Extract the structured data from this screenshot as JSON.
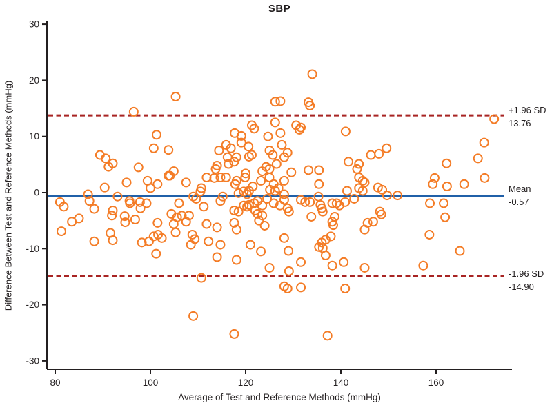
{
  "title": "SBP",
  "axes": {
    "x_label": "Average of Test and Reference Methods (mmHg)",
    "y_label": "Difference Between Test and Reference Methods (mmHg)",
    "x_ticks": [
      80,
      100,
      120,
      140,
      160
    ],
    "y_ticks": [
      -30,
      -20,
      -10,
      0,
      10,
      20,
      30
    ]
  },
  "reference_lines": [
    {
      "name": "upper_loa",
      "label": "+1.96 SD",
      "value_label": "13.76",
      "value": 13.76,
      "style": "dashed",
      "color": "#a82423"
    },
    {
      "name": "mean",
      "label": "Mean",
      "value_label": "-0.57",
      "value": -0.57,
      "style": "solid",
      "color": "#2060a8"
    },
    {
      "name": "lower_loa",
      "label": "-1.96 SD",
      "value_label": "-14.90",
      "value": -14.9,
      "style": "dashed",
      "color": "#a82423"
    }
  ],
  "marker": {
    "shape": "open-circle",
    "color": "#f47c26"
  },
  "chart_data": {
    "type": "scatter",
    "title": "SBP",
    "xlabel": "Average of Test and Reference Methods (mmHg)",
    "ylabel": "Difference Between Test and Reference Methods (mmHg)",
    "xlim": [
      78,
      176
    ],
    "ylim": [
      -33,
      32
    ],
    "grid": false,
    "mean": -0.57,
    "upper_loa": 13.76,
    "lower_loa": -14.9,
    "points": [
      [
        96.5,
        14.4
      ],
      [
        105.3,
        17.1
      ],
      [
        101.3,
        10.3
      ],
      [
        126.2,
        16.2
      ],
      [
        127.3,
        16.3
      ],
      [
        121.3,
        12.0
      ],
      [
        121.8,
        11.4
      ],
      [
        117.7,
        10.6
      ],
      [
        126.2,
        12.5
      ],
      [
        127.3,
        10.6
      ],
      [
        124.7,
        10.0
      ],
      [
        119.1,
        10.1
      ],
      [
        134.0,
        21.1
      ],
      [
        133.2,
        16.1
      ],
      [
        133.5,
        15.5
      ],
      [
        130.6,
        12.0
      ],
      [
        131.6,
        11.6
      ],
      [
        131.3,
        11.2
      ],
      [
        141.0,
        10.9
      ],
      [
        172.2,
        13.1
      ],
      [
        100.7,
        7.9
      ],
      [
        89.4,
        6.7
      ],
      [
        90.6,
        6.1
      ],
      [
        92.1,
        5.2
      ],
      [
        91.2,
        4.6
      ],
      [
        97.5,
        4.5
      ],
      [
        103.8,
        7.6
      ],
      [
        103.8,
        3.0
      ],
      [
        99.4,
        2.1
      ],
      [
        100.0,
        0.8
      ],
      [
        101.5,
        1.5
      ],
      [
        95.0,
        1.8
      ],
      [
        90.4,
        0.9
      ],
      [
        86.9,
        -0.3
      ],
      [
        87.2,
        -1.5
      ],
      [
        93.1,
        -0.7
      ],
      [
        81.0,
        -1.7
      ],
      [
        81.8,
        -2.5
      ],
      [
        88.2,
        -2.9
      ],
      [
        95.6,
        -1.5
      ],
      [
        95.7,
        -1.9
      ],
      [
        97.8,
        -1.7
      ],
      [
        99.2,
        -1.9
      ],
      [
        97.9,
        -2.8
      ],
      [
        92.1,
        -3.2
      ],
      [
        91.9,
        -4.1
      ],
      [
        85.0,
        -4.6
      ],
      [
        83.5,
        -5.2
      ],
      [
        94.6,
        -4.2
      ],
      [
        94.7,
        -5.3
      ],
      [
        96.8,
        -4.8
      ],
      [
        81.3,
        -6.9
      ],
      [
        91.6,
        -7.2
      ],
      [
        92.1,
        -8.5
      ],
      [
        101.5,
        -5.4
      ],
      [
        101.6,
        -7.5
      ],
      [
        100.7,
        -7.8
      ],
      [
        102.4,
        -8.1
      ],
      [
        88.2,
        -8.7
      ],
      [
        98.2,
        -8.9
      ],
      [
        99.7,
        -8.7
      ],
      [
        115.9,
        8.5
      ],
      [
        116.9,
        7.9
      ],
      [
        114.4,
        7.5
      ],
      [
        119.1,
        8.9
      ],
      [
        120.6,
        8.2
      ],
      [
        121.3,
        6.7
      ],
      [
        125.0,
        7.5
      ],
      [
        125.7,
        6.7
      ],
      [
        116.2,
        6.3
      ],
      [
        118.1,
        6.3
      ],
      [
        120.7,
        6.4
      ],
      [
        117.6,
        5.5
      ],
      [
        116.4,
        5.1
      ],
      [
        114.0,
        4.8
      ],
      [
        113.7,
        4.2
      ],
      [
        124.3,
        4.6
      ],
      [
        125.0,
        4.2
      ],
      [
        126.5,
        5.1
      ],
      [
        104.9,
        3.8
      ],
      [
        104.1,
        3.0
      ],
      [
        107.5,
        1.8
      ],
      [
        111.8,
        2.7
      ],
      [
        113.4,
        2.6
      ],
      [
        114.7,
        2.7
      ],
      [
        115.9,
        2.7
      ],
      [
        118.1,
        2.1
      ],
      [
        117.8,
        1.5
      ],
      [
        119.9,
        2.7
      ],
      [
        120.0,
        3.4
      ],
      [
        121.5,
        1.1
      ],
      [
        123.2,
        2.1
      ],
      [
        123.5,
        3.8
      ],
      [
        125.0,
        2.7
      ],
      [
        125.9,
        1.5
      ],
      [
        128.1,
        2.1
      ],
      [
        109.0,
        -0.7
      ],
      [
        109.6,
        -1.1
      ],
      [
        110.5,
        0.2
      ],
      [
        110.7,
        0.8
      ],
      [
        114.7,
        -1.5
      ],
      [
        115.2,
        -0.7
      ],
      [
        118.5,
        -0.1
      ],
      [
        119.6,
        0.2
      ],
      [
        120.3,
        -0.3
      ],
      [
        120.7,
        0.3
      ],
      [
        119.6,
        -2.3
      ],
      [
        120.3,
        -2.5
      ],
      [
        121.8,
        -1.9
      ],
      [
        122.5,
        -1.5
      ],
      [
        123.5,
        -2.3
      ],
      [
        124.5,
        -1.1
      ],
      [
        125.1,
        0.5
      ],
      [
        126.2,
        0.3
      ],
      [
        126.9,
        0.8
      ],
      [
        128.1,
        -0.3
      ],
      [
        106.0,
        -1.9
      ],
      [
        111.2,
        -2.5
      ],
      [
        117.6,
        -3.2
      ],
      [
        118.5,
        -3.4
      ],
      [
        120.7,
        -2.2
      ],
      [
        122.0,
        -3.2
      ],
      [
        125.9,
        -1.9
      ],
      [
        127.2,
        -2.3
      ],
      [
        104.4,
        -3.8
      ],
      [
        105.6,
        -4.4
      ],
      [
        106.6,
        -4.1
      ],
      [
        108.1,
        -4.1
      ],
      [
        107.5,
        -5.2
      ],
      [
        104.9,
        -5.6
      ],
      [
        105.3,
        -7.1
      ],
      [
        111.8,
        -5.6
      ],
      [
        117.6,
        -5.4
      ],
      [
        118.1,
        -6.6
      ],
      [
        122.5,
        -3.8
      ],
      [
        123.5,
        -4.1
      ],
      [
        122.8,
        -5.0
      ],
      [
        124.0,
        -5.9
      ],
      [
        108.8,
        -7.5
      ],
      [
        109.3,
        -8.3
      ],
      [
        114.0,
        -6.2
      ],
      [
        112.2,
        -8.7
      ],
      [
        114.7,
        -9.3
      ],
      [
        108.5,
        -9.3
      ],
      [
        121.0,
        -9.3
      ],
      [
        128.1,
        -8.1
      ],
      [
        127.6,
        8.5
      ],
      [
        128.8,
        7.1
      ],
      [
        128.1,
        6.3
      ],
      [
        129.6,
        3.6
      ],
      [
        133.2,
        4.0
      ],
      [
        135.4,
        4.0
      ],
      [
        135.4,
        1.5
      ],
      [
        141.6,
        5.5
      ],
      [
        143.8,
        5.1
      ],
      [
        143.4,
        4.2
      ],
      [
        146.3,
        6.7
      ],
      [
        148.0,
        6.9
      ],
      [
        149.6,
        7.9
      ],
      [
        143.8,
        2.7
      ],
      [
        144.6,
        2.1
      ],
      [
        145.0,
        1.8
      ],
      [
        143.8,
        0.8
      ],
      [
        144.6,
        0.3
      ],
      [
        141.3,
        0.3
      ],
      [
        147.8,
        0.9
      ],
      [
        148.7,
        0.5
      ],
      [
        149.7,
        -0.5
      ],
      [
        151.9,
        -0.5
      ],
      [
        128.1,
        -1.3
      ],
      [
        131.6,
        -1.3
      ],
      [
        132.5,
        -1.7
      ],
      [
        133.5,
        -1.7
      ],
      [
        135.3,
        -0.7
      ],
      [
        135.7,
        -2.2
      ],
      [
        136.0,
        -2.8
      ],
      [
        136.2,
        -3.4
      ],
      [
        138.2,
        -1.9
      ],
      [
        139.1,
        -1.9
      ],
      [
        139.7,
        -2.3
      ],
      [
        140.9,
        -1.7
      ],
      [
        142.8,
        -1.1
      ],
      [
        128.8,
        -2.8
      ],
      [
        129.1,
        -3.4
      ],
      [
        133.8,
        -4.3
      ],
      [
        138.7,
        -4.3
      ],
      [
        138.2,
        -5.2
      ],
      [
        138.4,
        -5.8
      ],
      [
        148.2,
        -3.4
      ],
      [
        148.5,
        -3.9
      ],
      [
        146.8,
        -5.2
      ],
      [
        145.6,
        -5.4
      ],
      [
        145.0,
        -6.6
      ],
      [
        137.9,
        -7.8
      ],
      [
        136.8,
        -8.4
      ],
      [
        136.0,
        -8.9
      ],
      [
        135.4,
        -9.7
      ],
      [
        136.2,
        -9.9
      ],
      [
        170.1,
        8.9
      ],
      [
        168.8,
        6.1
      ],
      [
        162.2,
        5.2
      ],
      [
        159.7,
        2.6
      ],
      [
        159.3,
        1.5
      ],
      [
        162.3,
        1.1
      ],
      [
        165.9,
        1.5
      ],
      [
        170.2,
        2.6
      ],
      [
        158.7,
        -1.9
      ],
      [
        161.6,
        -1.9
      ],
      [
        161.9,
        -4.4
      ],
      [
        158.6,
        -7.5
      ],
      [
        101.2,
        -10.9
      ],
      [
        114.0,
        -11.5
      ],
      [
        118.1,
        -12.0
      ],
      [
        123.2,
        -10.5
      ],
      [
        125.0,
        -13.4
      ],
      [
        110.7,
        -15.2
      ],
      [
        109.0,
        -22.0
      ],
      [
        117.6,
        -25.2
      ],
      [
        129.0,
        -10.4
      ],
      [
        136.8,
        -11.2
      ],
      [
        131.6,
        -12.4
      ],
      [
        138.2,
        -13.0
      ],
      [
        140.6,
        -12.4
      ],
      [
        145.0,
        -13.4
      ],
      [
        129.1,
        -14.0
      ],
      [
        128.1,
        -16.7
      ],
      [
        128.8,
        -17.1
      ],
      [
        131.6,
        -16.9
      ],
      [
        140.9,
        -17.1
      ],
      [
        137.2,
        -25.5
      ],
      [
        165.0,
        -10.4
      ],
      [
        157.3,
        -13.0
      ]
    ]
  }
}
